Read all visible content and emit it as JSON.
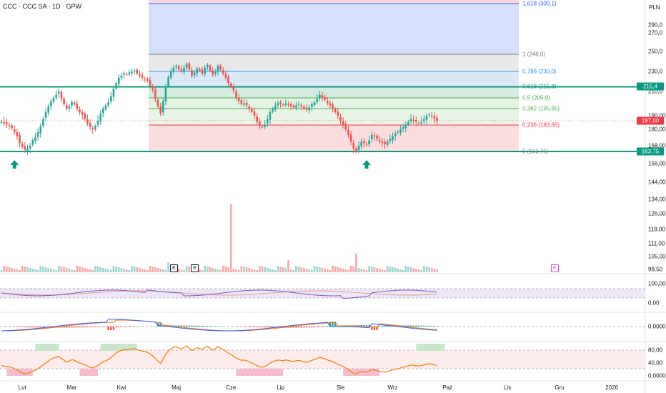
{
  "header": {
    "title": "CCC · CCC SA · 1D · GPW",
    "currency": "PLN"
  },
  "price_axis": [
    {
      "label": "290,0",
      "v": 290
    },
    {
      "label": "270,0",
      "v": 270
    },
    {
      "label": "250,0",
      "v": 250
    },
    {
      "label": "230,0",
      "v": 230
    },
    {
      "label": "210,0",
      "v": 210
    },
    {
      "label": "190,00",
      "v": 190
    },
    {
      "label": "180,00",
      "v": 180
    },
    {
      "label": "168,00",
      "v": 168
    },
    {
      "label": "156,00",
      "v": 156
    },
    {
      "label": "144,00",
      "v": 144
    },
    {
      "label": "134,00",
      "v": 134
    },
    {
      "label": "126,00",
      "v": 126
    },
    {
      "label": "118,00",
      "v": 118
    },
    {
      "label": "111,00",
      "v": 111
    },
    {
      "label": "105,00",
      "v": 105
    },
    {
      "label": "99,50",
      "v": 99.5
    }
  ],
  "price_badges": [
    {
      "label": "215,4",
      "v": 215.4,
      "color": "#089981"
    },
    {
      "label": "187,00",
      "v": 187,
      "color": "#f23645"
    },
    {
      "label": "163,75",
      "v": 163.75,
      "color": "#089981"
    }
  ],
  "fibonacci": {
    "levels": [
      {
        "label": "1,618 (300,1)",
        "v": 300.1,
        "color": "#2962ff"
      },
      {
        "label": "1 (248,0)",
        "v": 248.0,
        "color": "#787b86"
      },
      {
        "label": "0,786 (230,0)",
        "v": 230.0,
        "color": "#2196f3"
      },
      {
        "label": "0,618 (215,8)",
        "v": 215.8,
        "color": "#089981"
      },
      {
        "label": "0,5 (205,9)",
        "v": 205.9,
        "color": "#4caf50"
      },
      {
        "label": "0,382 (195,95)",
        "v": 195.95,
        "color": "#4caf50"
      },
      {
        "label": "0,236 (183,65)",
        "v": 183.65,
        "color": "#f23645"
      },
      {
        "label": "0 (163,75)",
        "v": 163.75,
        "color": "#787b86"
      }
    ]
  },
  "horizontal_lines": [
    215.4,
    163.75
  ],
  "rsi_axis": [
    {
      "label": "100,00",
      "v": 100
    },
    {
      "label": "0,00",
      "v": 0
    }
  ],
  "macd_axis": [
    {
      "label": "0,0000",
      "v": 0
    }
  ],
  "stoch_axis": [
    {
      "label": "80,00",
      "v": 80
    },
    {
      "label": "40,00",
      "v": 40
    },
    {
      "label": "0,0000",
      "v": 0
    }
  ],
  "time_axis": [
    {
      "label": "Lut",
      "day": 8
    },
    {
      "label": "Mar",
      "day": 27
    },
    {
      "label": "Kwi",
      "day": 46
    },
    {
      "label": "Maj",
      "day": 67
    },
    {
      "label": "Cze",
      "day": 88
    },
    {
      "label": "Lip",
      "day": 107
    },
    {
      "label": "Sie",
      "day": 130
    },
    {
      "label": "Wrz",
      "day": 150
    },
    {
      "label": "Paź",
      "day": 171
    },
    {
      "label": "Lis",
      "day": 194
    },
    {
      "label": "Gru",
      "day": 214
    },
    {
      "label": "2026",
      "day": 234
    }
  ],
  "earnings_markers": [
    {
      "label": "E",
      "day": 66,
      "color": "#131722"
    },
    {
      "label": "E",
      "day": 74,
      "color": "#131722"
    },
    {
      "label": "E",
      "day": 212,
      "color": "#e040fb"
    }
  ],
  "signal_arrows": [
    {
      "name": "buy-arrow-1",
      "day": 5
    },
    {
      "name": "buy-arrow-2",
      "day": 140
    }
  ],
  "colors": {
    "up": "#26a69a",
    "down": "#ef5350",
    "line": "#089981",
    "rsi": "#7e57c2",
    "macd": "#2962ff",
    "signal": "#ff6d00",
    "stoch": "#f57c00"
  },
  "chart_data": {
    "type": "candlestick",
    "start_day": 0,
    "closes": [
      186,
      185,
      184,
      183,
      181,
      178,
      175,
      170,
      167,
      165,
      166,
      168,
      172,
      174,
      178,
      183,
      188,
      193,
      198,
      203,
      206,
      208,
      210,
      205,
      200,
      196,
      198,
      202,
      200,
      196,
      193,
      191,
      188,
      185,
      182,
      180,
      183,
      187,
      192,
      196,
      199,
      202,
      207,
      213,
      219,
      224,
      226,
      228,
      227,
      229,
      230,
      231,
      228,
      226,
      224,
      223,
      221,
      216,
      212,
      205,
      198,
      192,
      203,
      216,
      225,
      230,
      234,
      236,
      232,
      230,
      234,
      238,
      232,
      226,
      229,
      233,
      231,
      228,
      234,
      237,
      231,
      227,
      230,
      236,
      232,
      228,
      224,
      219,
      215,
      211,
      206,
      203,
      200,
      201,
      199,
      196,
      193,
      190,
      186,
      183,
      182,
      184,
      188,
      193,
      196,
      199,
      201,
      200,
      199,
      201,
      200,
      198,
      197,
      199,
      200,
      198,
      196,
      195,
      197,
      200,
      202,
      205,
      208,
      206,
      204,
      201,
      199,
      196,
      193,
      190,
      187,
      184,
      180,
      176,
      171,
      166,
      164,
      168,
      171,
      170,
      169,
      172,
      176,
      175,
      173,
      171,
      170,
      169,
      171,
      173,
      175,
      177,
      178,
      180,
      182,
      184,
      186,
      188,
      187,
      186,
      185,
      186,
      188,
      190,
      191,
      190,
      188,
      187
    ]
  }
}
